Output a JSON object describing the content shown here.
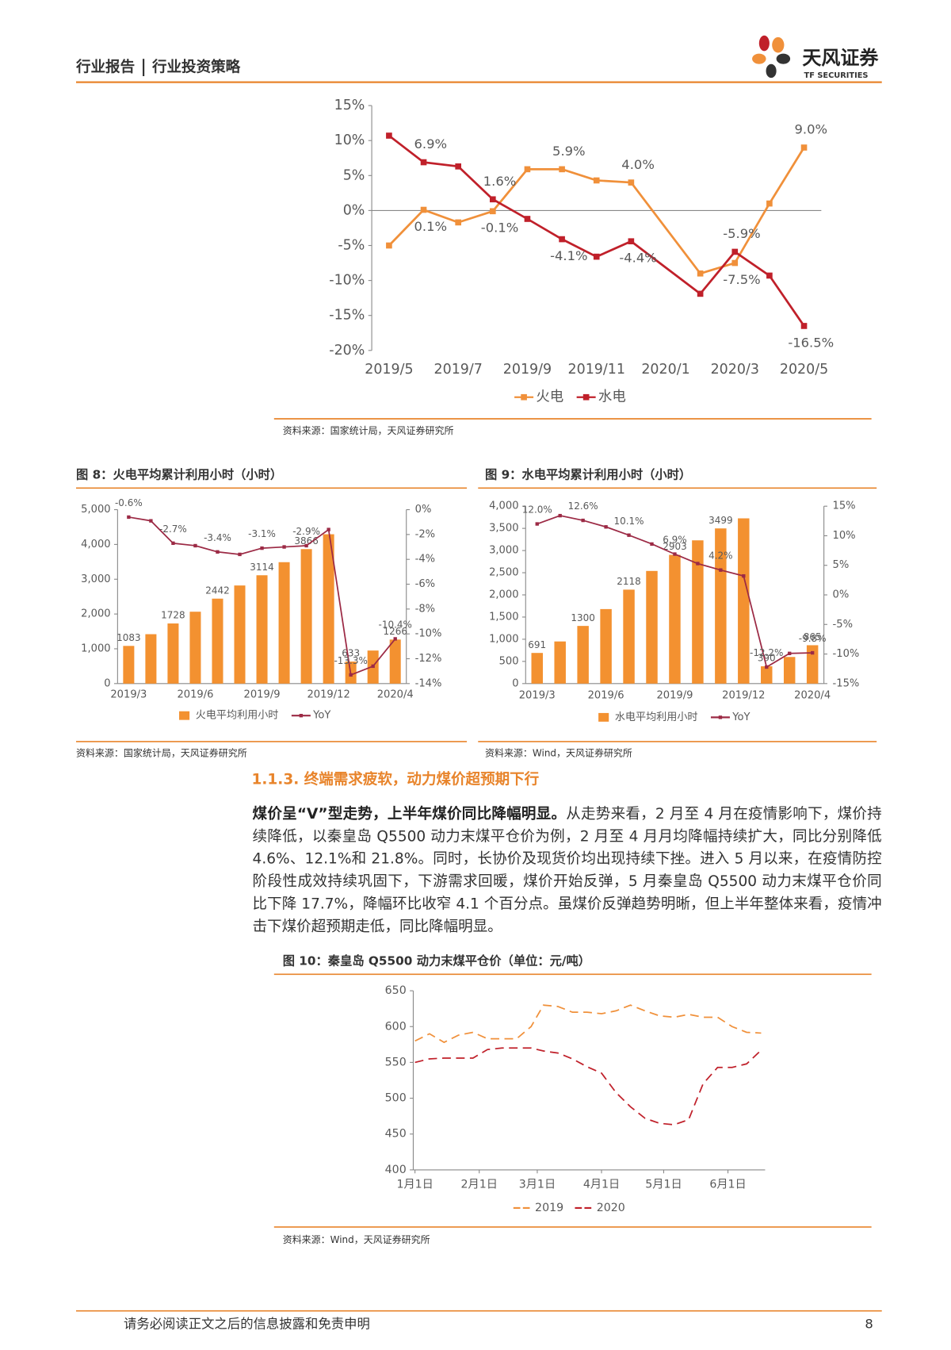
{
  "header": {
    "report_type": "行业报告",
    "report_subtype": "行业投资策略",
    "logo_name": "天风证券",
    "logo_en": "TF SECURITIES"
  },
  "chart_data": [
    {
      "type": "line",
      "source": "资料来源：国家统计局，天风证券研究所",
      "x": [
        "2019/5",
        "2019/6",
        "2019/7",
        "2019/8",
        "2019/9",
        "2019/10",
        "2019/11",
        "2019/12",
        "2020/2",
        "2020/3",
        "2020/4",
        "2020/5"
      ],
      "xticks": [
        "2019/5",
        "2019/7",
        "2019/9",
        "2019/11",
        "2020/1",
        "2020/3",
        "2020/5"
      ],
      "series": [
        {
          "name": "火电",
          "color": "#F0903A",
          "values": [
            -5.0,
            0.1,
            -1.7,
            -0.1,
            5.9,
            5.9,
            4.3,
            4.0,
            -9.0,
            -7.5,
            1.0,
            9.0
          ],
          "value_labels": [
            null,
            "0.1%",
            null,
            "-0.1%",
            null,
            "5.9%",
            null,
            "4.0%",
            null,
            "-7.5%",
            null,
            "9.0%"
          ]
        },
        {
          "name": "水电",
          "color": "#C0202A",
          "values": [
            10.7,
            6.9,
            6.3,
            1.6,
            -1.2,
            -4.1,
            -6.6,
            -4.4,
            -11.9,
            -5.9,
            -9.3,
            -16.5
          ],
          "value_labels": [
            null,
            "6.9%",
            null,
            "1.6%",
            null,
            "-4.1%",
            null,
            "-4.4%",
            null,
            "-5.9%",
            null,
            "-16.5%"
          ]
        }
      ],
      "ylim": [
        -20,
        15
      ],
      "yticks": [
        {
          "value": 15,
          "label": "15%"
        },
        {
          "value": 10,
          "label": "10%"
        },
        {
          "value": 5,
          "label": "5%"
        },
        {
          "value": 0,
          "label": "0%"
        },
        {
          "value": -5,
          "label": "-5%"
        },
        {
          "value": -10,
          "label": "-10%"
        },
        {
          "value": -15,
          "label": "-15%"
        },
        {
          "value": -20,
          "label": "-20%"
        }
      ],
      "markers": "square",
      "legend": "bottom"
    },
    {
      "type": "combo",
      "title": "图 8：火电平均累计利用小时（小时）",
      "source": "资料来源：国家统计局，天风证券研究所",
      "categories": [
        "2019/3",
        null,
        null,
        "2019/6",
        null,
        null,
        "2019/9",
        null,
        null,
        "2019/12",
        null,
        null,
        "2020/4"
      ],
      "series": [
        {
          "name": "火电平均利用小时",
          "type": "bar",
          "color": "#F39130",
          "values": [
            1083,
            1420,
            1728,
            2066,
            2442,
            2820,
            3114,
            3490,
            3866,
            4293,
            633,
            950,
            1266
          ],
          "value_labels": [
            "1083",
            null,
            "1728",
            null,
            "2442",
            null,
            "3114",
            null,
            "3866",
            null,
            "633",
            null,
            "1266"
          ]
        },
        {
          "name": "YoY",
          "type": "line",
          "axis": "y2",
          "color": "#9C2A45",
          "values": [
            -0.6,
            -0.9,
            -2.7,
            -2.9,
            -3.4,
            -3.6,
            -3.1,
            -3.0,
            -2.9,
            -1.6,
            -13.3,
            -12.6,
            -10.4
          ],
          "value_labels": [
            "-0.6%",
            null,
            "-2.7%",
            null,
            "-3.4%",
            null,
            "-3.1%",
            null,
            "-2.9%",
            null,
            "-13.3%",
            null,
            "-10.4%"
          ]
        }
      ],
      "ylim": [
        0,
        5000
      ],
      "yticks": [
        {
          "value": 5000,
          "label": "5,000"
        },
        {
          "value": 4000,
          "label": "4,000"
        },
        {
          "value": 3000,
          "label": "3,000"
        },
        {
          "value": 2000,
          "label": "2,000"
        },
        {
          "value": 1000,
          "label": "1,000"
        },
        0
      ],
      "y2lim": [
        -14,
        0
      ],
      "y2ticks": [
        {
          "value": 0,
          "label": "0%"
        },
        {
          "value": -2,
          "label": "-2%"
        },
        {
          "value": -4,
          "label": "-4%"
        },
        {
          "value": -6,
          "label": "-6%"
        },
        {
          "value": -8,
          "label": "-8%"
        },
        {
          "value": -10,
          "label": "-10%"
        },
        {
          "value": -12,
          "label": "-12%"
        },
        {
          "value": -14,
          "label": "-14%"
        }
      ],
      "markers": "square",
      "legend": "bottom"
    },
    {
      "type": "combo",
      "title": "图 9：水电平均累计利用小时（小时）",
      "source": "资料来源：Wind，天风证券研究所",
      "categories": [
        "2019/3",
        null,
        null,
        "2019/6",
        null,
        null,
        "2019/9",
        null,
        null,
        "2019/12",
        null,
        null,
        "2020/4"
      ],
      "series": [
        {
          "name": "水电平均利用小时",
          "type": "bar",
          "color": "#F39130",
          "values": [
            691,
            950,
            1300,
            1680,
            2118,
            2540,
            2903,
            3230,
            3499,
            3726,
            390,
            600,
            865
          ],
          "value_labels": [
            "691",
            null,
            "1300",
            null,
            "2118",
            null,
            "2903",
            null,
            "3499",
            null,
            "390",
            null,
            "865"
          ]
        },
        {
          "name": "YoY",
          "type": "line",
          "axis": "y2",
          "color": "#9C2A45",
          "values": [
            12.0,
            13.4,
            12.6,
            11.5,
            10.1,
            8.6,
            6.9,
            5.3,
            4.2,
            3.2,
            -12.2,
            -9.9,
            -9.8
          ],
          "value_labels": [
            "12.0%",
            null,
            "12.6%",
            null,
            "10.1%",
            null,
            "6.9%",
            null,
            "4.2%",
            null,
            "-12.2%",
            null,
            "-9.8%"
          ]
        }
      ],
      "ylim": [
        0,
        4000
      ],
      "yticks": [
        {
          "value": 4000,
          "label": "4,000"
        },
        {
          "value": 3500,
          "label": "3,500"
        },
        {
          "value": 3000,
          "label": "3,000"
        },
        {
          "value": 2500,
          "label": "2,500"
        },
        {
          "value": 2000,
          "label": "2,000"
        },
        {
          "value": 1500,
          "label": "1,500"
        },
        {
          "value": 1000,
          "label": "1,000"
        },
        500,
        0
      ],
      "y2lim": [
        -15,
        15
      ],
      "y2ticks": [
        {
          "value": 15,
          "label": "15%"
        },
        {
          "value": 10,
          "label": "10%"
        },
        {
          "value": 5,
          "label": "5%"
        },
        {
          "value": 0,
          "label": "0%"
        },
        {
          "value": -5,
          "label": "-5%"
        },
        {
          "value": -10,
          "label": "-10%"
        },
        {
          "value": -15,
          "label": "-15%"
        }
      ],
      "markers": "square",
      "legend": "bottom"
    },
    {
      "type": "line",
      "title": "图 10：秦皇岛 Q5500 动力末煤平仓价（单位：元/吨）",
      "source": "资料来源：Wind，天风证券研究所",
      "x": [
        "1月1日",
        "1月8日",
        "1月15日",
        "1月22日",
        "1月29日",
        "2月5日",
        "2月12日",
        "2月19日",
        "2月26日",
        "3月4日",
        "3月11日",
        "3月18日",
        "3月25日",
        "4月1日",
        "4月8日",
        "4月15日",
        "4月22日",
        "4月29日",
        "5月6日",
        "5月13日",
        "5月20日",
        "5月27日",
        "6月3日",
        "6月10日",
        "6月17日"
      ],
      "xticks": [
        "1月1日",
        "2月1日",
        "3月1日",
        "4月1日",
        "5月1日",
        "6月1日"
      ],
      "series": [
        {
          "name": "2019",
          "color": "#F0903A",
          "values": [
            580,
            590,
            578,
            588,
            592,
            583,
            583,
            583,
            600,
            630,
            628,
            620,
            620,
            618,
            622,
            630,
            622,
            615,
            613,
            617,
            613,
            613,
            600,
            592,
            591
          ]
        },
        {
          "name": "2020",
          "color": "#C0202A",
          "values": [
            550,
            555,
            556,
            556,
            556,
            568,
            570,
            570,
            570,
            566,
            563,
            555,
            544,
            535,
            508,
            488,
            472,
            465,
            463,
            470,
            520,
            543,
            543,
            548,
            567
          ]
        }
      ],
      "ylim": [
        400,
        650
      ],
      "yticks": [
        650,
        600,
        550,
        500,
        450,
        400
      ],
      "line_style": "dashed",
      "legend": "bottom"
    }
  ],
  "section": {
    "heading": "1.1.3. 终端需求疲软，动力煤价超预期下行",
    "lead": "煤价呈“V”型走势，上半年煤价同比降幅明显。",
    "text": "从走势来看，2 月至 4 月在疫情影响下，煤价持续降低，以秦皇岛 Q5500 动力末煤平仓价为例，2 月至 4 月月均降幅持续扩大，同比分别降低 4.6%、12.1%和 21.8%。同时，长协价及现货价均出现持续下挫。进入 5 月以来，在疫情防控阶段性成效持续巩固下，下游需求回暖，煤价开始反弹，5 月秦皇岛 Q5500 动力末煤平仓价同比下降 17.7%，降幅环比收窄 4.1 个百分点。虽煤价反弹趋势明晰，但上半年整体来看，疫情冲击下煤价超预期走低，同比降幅明显。"
  },
  "footer": {
    "disclaimer": "请务必阅读正文之后的信息披露和免责申明",
    "page": 8
  }
}
